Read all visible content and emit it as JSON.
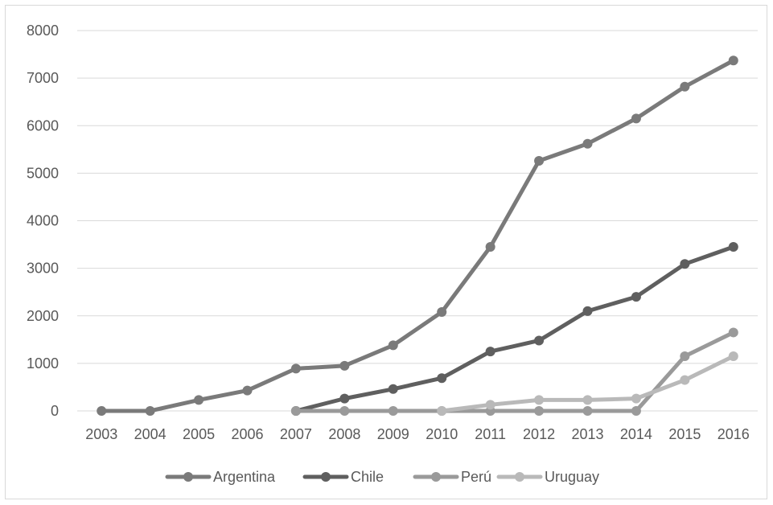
{
  "chart_data": {
    "type": "line",
    "title": "",
    "xlabel": "",
    "ylabel": "",
    "categories": [
      "2003",
      "2004",
      "2005",
      "2006",
      "2007",
      "2008",
      "2009",
      "2010",
      "2011",
      "2012",
      "2013",
      "2014",
      "2015",
      "2016"
    ],
    "ylim": [
      0,
      8000
    ],
    "yticks": [
      "0",
      "1000",
      "2000",
      "3000",
      "4000",
      "5000",
      "6000",
      "7000",
      "8000"
    ],
    "grid": "horizontal",
    "legend_position": "bottom",
    "series": [
      {
        "name": "Argentina",
        "color": "#7a7a7a",
        "values": [
          0,
          0,
          230,
          430,
          890,
          950,
          1380,
          2080,
          3450,
          5260,
          5620,
          6150,
          6820,
          7370
        ]
      },
      {
        "name": "Chile",
        "color": "#5f5f5f",
        "values": [
          null,
          null,
          null,
          null,
          0,
          260,
          460,
          690,
          1250,
          1480,
          2100,
          2400,
          3090,
          3450
        ]
      },
      {
        "name": "Perú",
        "color": "#9a9a9a",
        "values": [
          null,
          null,
          null,
          null,
          0,
          0,
          0,
          0,
          0,
          0,
          0,
          0,
          1150,
          1650
        ]
      },
      {
        "name": "Uruguay",
        "color": "#b9b9b9",
        "values": [
          null,
          null,
          null,
          null,
          null,
          null,
          null,
          0,
          130,
          230,
          230,
          260,
          650,
          1150
        ]
      }
    ]
  }
}
